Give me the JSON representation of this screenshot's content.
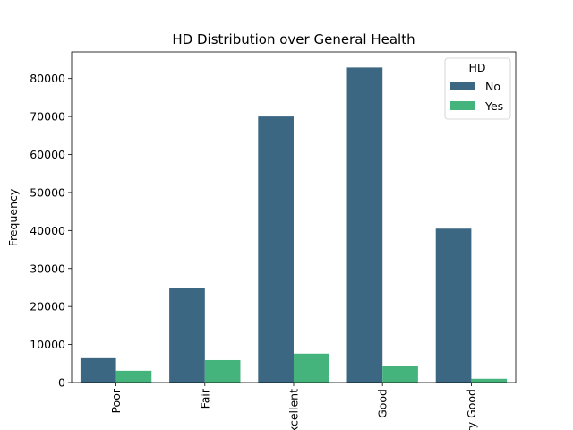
{
  "chart_data": {
    "type": "bar",
    "title": "HD Distribution over General Health",
    "xlabel": "",
    "ylabel": "Frequency",
    "categories": [
      "Poor",
      "Fair",
      "Excellent",
      "Good",
      "Very Good"
    ],
    "series": [
      {
        "name": "No",
        "color": "#3b6782",
        "values": [
          6400,
          24800,
          70000,
          82900,
          40500
        ]
      },
      {
        "name": "Yes",
        "color": "#45b47c",
        "values": [
          3100,
          5900,
          7600,
          4400,
          1000
        ]
      }
    ],
    "ylim": [
      0,
      87000
    ],
    "yticks": [
      0,
      10000,
      20000,
      30000,
      40000,
      50000,
      60000,
      70000,
      80000
    ],
    "legend": {
      "title": "HD",
      "position": "top-right"
    },
    "grid": false
  }
}
